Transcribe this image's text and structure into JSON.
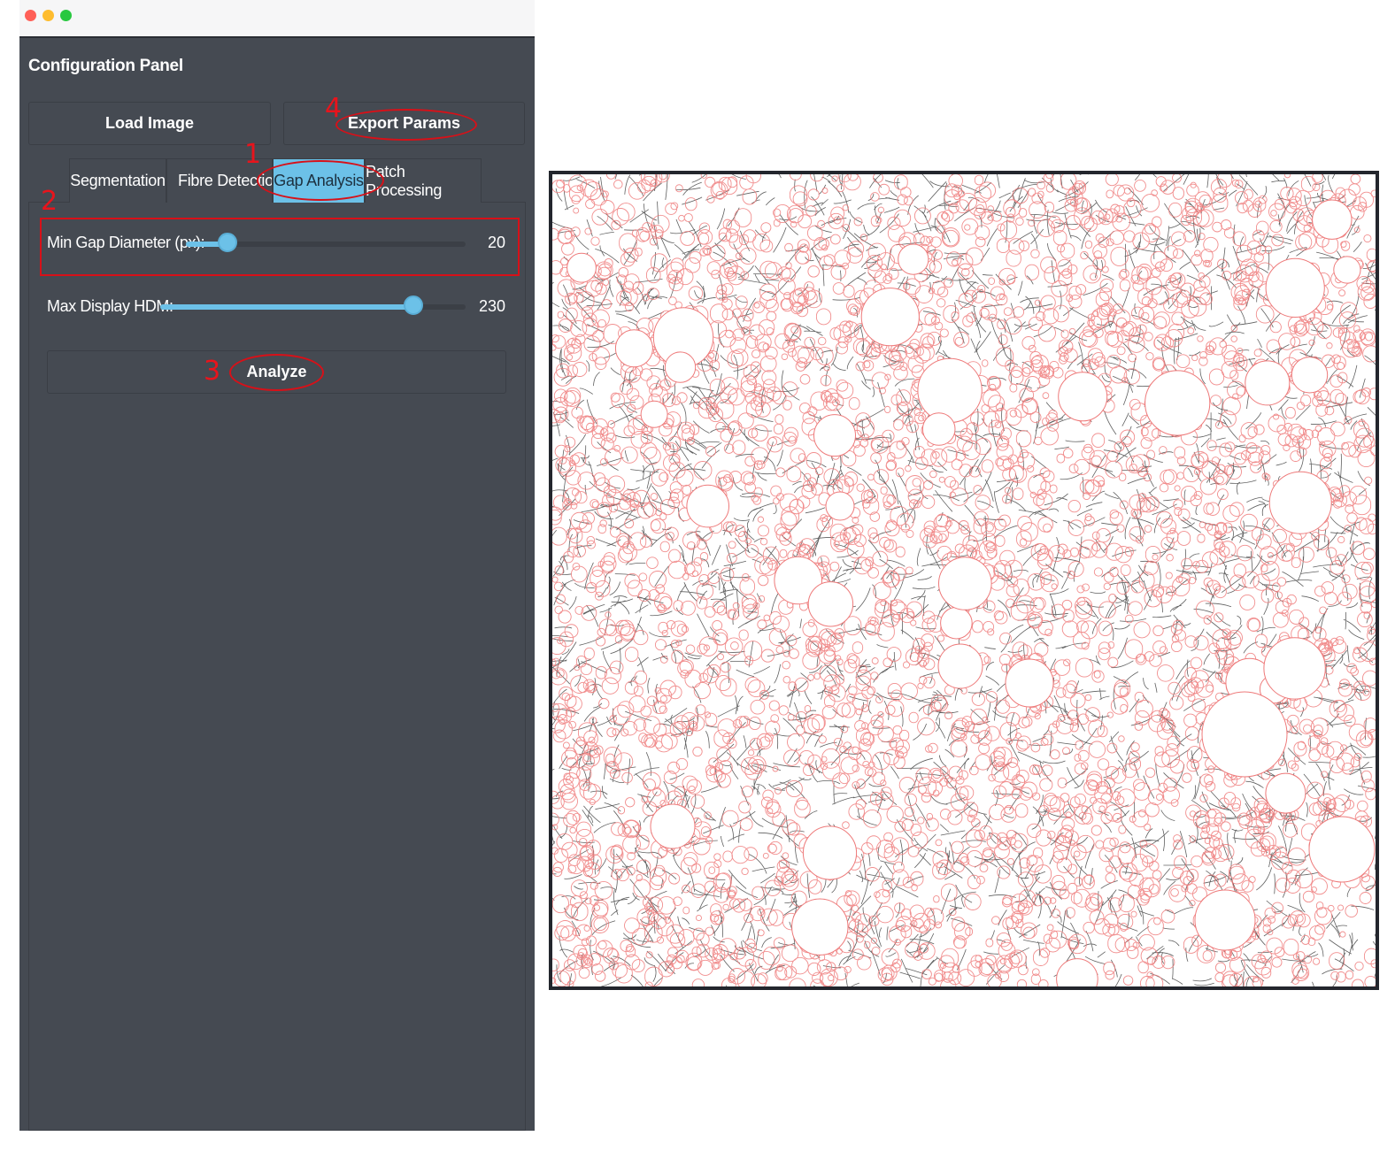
{
  "window": {
    "controls": [
      "close",
      "minimize",
      "maximize"
    ]
  },
  "panel": {
    "title": "Configuration Panel",
    "load_label": "Load Image",
    "export_label": "Export Params"
  },
  "tabs": [
    {
      "label": "Segmentation",
      "active": false
    },
    {
      "label": "Fibre Detection",
      "active": false
    },
    {
      "label": "Gap Analysis",
      "active": true
    },
    {
      "label": "Patch Processing",
      "active": false
    }
  ],
  "gap_analysis": {
    "min_gap": {
      "label": "Min Gap Diameter (px):",
      "value": "20",
      "fraction": 0.15
    },
    "max_hdm": {
      "label": "Max Display HDM:",
      "value": "230",
      "fraction": 0.83
    },
    "analyze_label": "Analyze"
  },
  "annotations": {
    "n1": "1",
    "n2": "2",
    "n3": "3",
    "n4": "4"
  },
  "colors": {
    "panel_bg": "#454a52",
    "accent": "#6cc1e8",
    "annotation": "#d81018",
    "gap_circle": "#ee7a7a",
    "fibre": "#2b2b2b"
  }
}
